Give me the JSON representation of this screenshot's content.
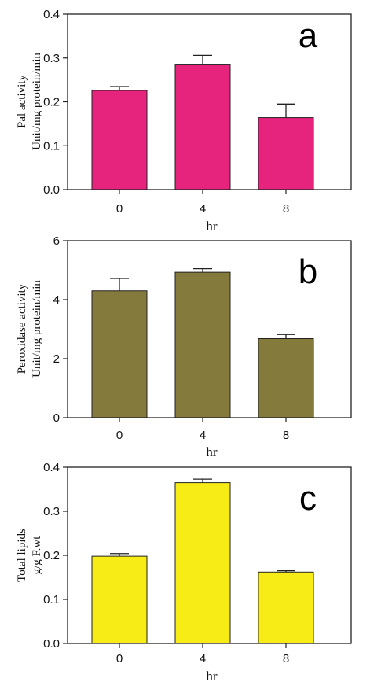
{
  "chart_data": [
    {
      "type": "bar",
      "panel_label": "a",
      "categories": [
        "0",
        "4",
        "8"
      ],
      "series": [
        {
          "values": [
            0.226,
            0.286,
            0.164
          ],
          "errors": [
            0.009,
            0.02,
            0.031
          ],
          "color": "#e6237d"
        }
      ],
      "xlabel": "hr",
      "ylabel_lines": [
        "Pal activity",
        "Unit/mg protein/min"
      ],
      "ylim": [
        0,
        0.4
      ],
      "yticks": [
        0.0,
        0.1,
        0.2,
        0.3,
        0.4
      ],
      "ytick_labels": [
        "0.0",
        "0.1",
        "0.2",
        "0.3",
        "0.4"
      ],
      "grid": false,
      "legend": "none"
    },
    {
      "type": "bar",
      "panel_label": "b",
      "categories": [
        "0",
        "4",
        "8"
      ],
      "series": [
        {
          "values": [
            4.3,
            4.93,
            2.68
          ],
          "errors": [
            0.42,
            0.12,
            0.14
          ],
          "color": "#847a3c"
        }
      ],
      "xlabel": "hr",
      "ylabel_lines": [
        "Peroxidase activity",
        "Unit/mg protein/min"
      ],
      "ylim": [
        0,
        6
      ],
      "yticks": [
        0,
        2,
        4,
        6
      ],
      "ytick_labels": [
        "0",
        "2",
        "4",
        "6"
      ],
      "grid": false,
      "legend": "none"
    },
    {
      "type": "bar",
      "panel_label": "c",
      "categories": [
        "0",
        "4",
        "8"
      ],
      "series": [
        {
          "values": [
            0.198,
            0.365,
            0.162
          ],
          "errors": [
            0.006,
            0.008,
            0.003
          ],
          "color": "#f7ec16"
        }
      ],
      "xlabel": "hr",
      "ylabel_lines": [
        "Total lipids",
        "g/g F.wt"
      ],
      "ylim": [
        0,
        0.4
      ],
      "yticks": [
        0.0,
        0.1,
        0.2,
        0.3,
        0.4
      ],
      "ytick_labels": [
        "0.0",
        "0.1",
        "0.2",
        "0.3",
        "0.4"
      ],
      "grid": false,
      "legend": "none"
    }
  ]
}
